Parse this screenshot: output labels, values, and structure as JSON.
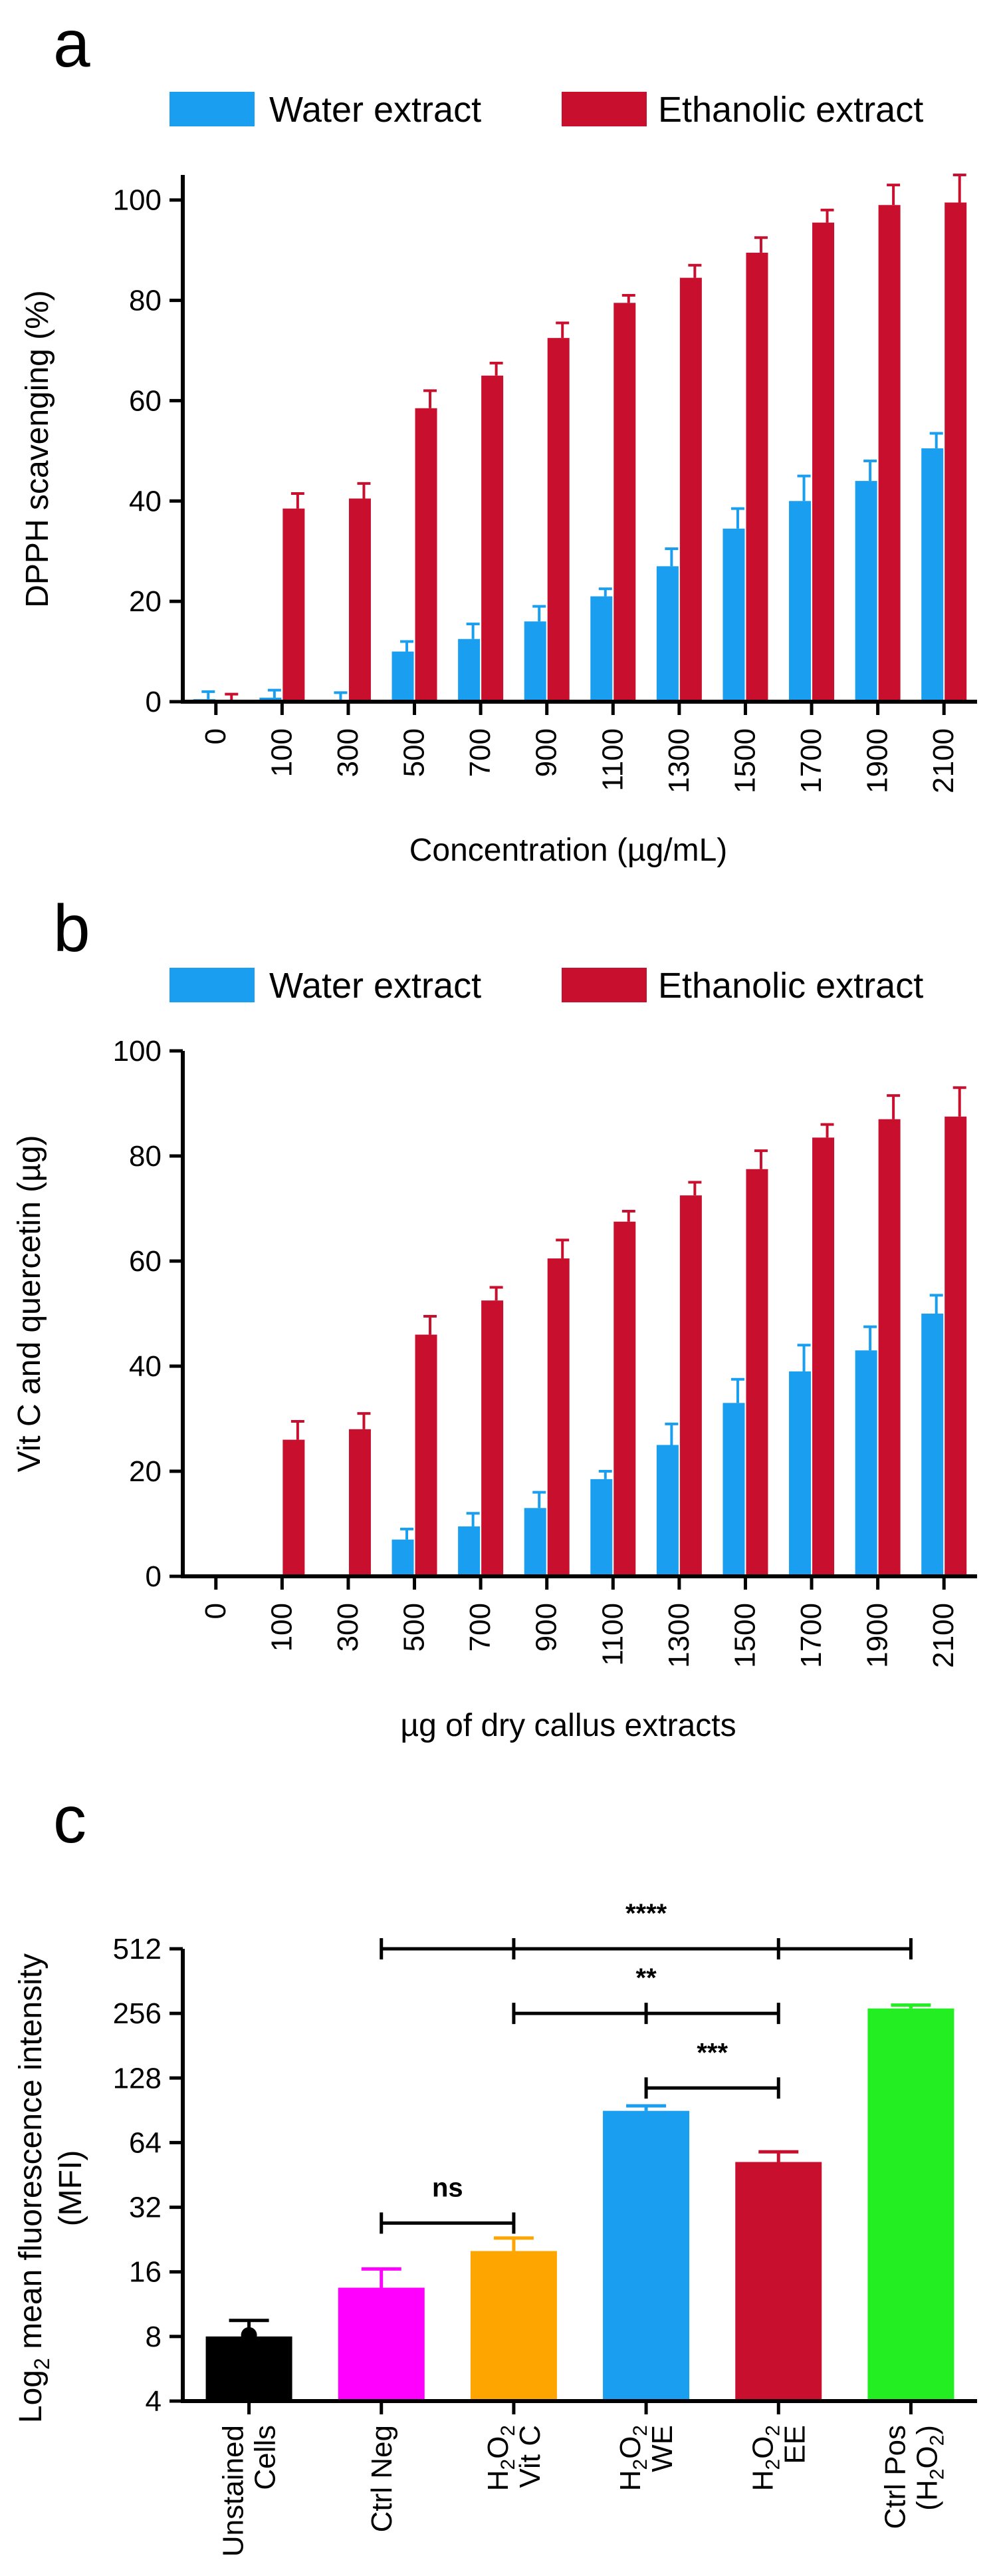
{
  "colors": {
    "water": "#1a9ff0",
    "ethanol": "#c8102e",
    "water_err": "#1a9ff0",
    "ethanol_err": "#c8102e"
  },
  "chart_data": [
    {
      "panel": "a",
      "type": "bar",
      "title": "",
      "xlabel": "Concentration (µg/mL)",
      "ylabel": "DPPH scavenging (%)",
      "ylim": [
        0,
        105
      ],
      "yticks": [
        "0",
        "20",
        "40",
        "60",
        "80",
        "100"
      ],
      "ytick_values": [
        0,
        20,
        40,
        60,
        80,
        100
      ],
      "legend": [
        "Water extract",
        "Ethanolic extract"
      ],
      "categories": [
        "0",
        "100",
        "300",
        "500",
        "700",
        "900",
        "1100",
        "1300",
        "1500",
        "1700",
        "1900",
        "2100"
      ],
      "series": [
        {
          "name": "Water extract",
          "values": [
            0.5,
            0.8,
            0.3,
            10,
            12.5,
            16,
            21,
            27,
            34.5,
            40,
            44,
            50.5
          ],
          "errors": [
            1.5,
            1.5,
            1.5,
            2,
            3,
            3,
            1.5,
            3.5,
            4,
            5,
            4,
            3
          ]
        },
        {
          "name": "Ethanolic extract",
          "values": [
            0,
            38.5,
            40.5,
            58.5,
            65,
            72.5,
            79.5,
            84.5,
            89.5,
            95.5,
            99,
            99.5
          ],
          "errors": [
            1.5,
            3,
            3,
            3.5,
            2.5,
            3,
            1.5,
            2.5,
            3,
            2.5,
            4,
            5.5
          ]
        }
      ]
    },
    {
      "panel": "b",
      "type": "bar",
      "title": "",
      "xlabel": "µg of dry callus extracts",
      "ylabel": "Vit C and quercetin (µg)",
      "ylim": [
        0,
        100
      ],
      "yticks": [
        "0",
        "20",
        "40",
        "60",
        "80",
        "100"
      ],
      "ytick_values": [
        0,
        20,
        40,
        60,
        80,
        100
      ],
      "legend": [
        "Water extract",
        "Ethanolic extract"
      ],
      "categories": [
        "0",
        "100",
        "300",
        "500",
        "700",
        "900",
        "1100",
        "1300",
        "1500",
        "1700",
        "1900",
        "2100"
      ],
      "series": [
        {
          "name": "Water extract",
          "values": [
            0,
            0,
            0,
            7,
            9.5,
            13,
            18.5,
            25,
            33,
            39,
            43,
            50
          ],
          "errors": [
            0,
            0,
            0,
            2,
            2.5,
            3,
            1.5,
            4,
            4.5,
            5,
            4.5,
            3.5
          ]
        },
        {
          "name": "Ethanolic extract",
          "values": [
            0,
            26,
            28,
            46,
            52.5,
            60.5,
            67.5,
            72.5,
            77.5,
            83.5,
            87,
            87.5
          ],
          "errors": [
            0,
            3.5,
            3,
            3.5,
            2.5,
            3.5,
            2,
            2.5,
            3.5,
            2.5,
            4.5,
            5.5
          ]
        }
      ]
    },
    {
      "panel": "c",
      "type": "bar",
      "title": "",
      "xlabel": "",
      "ylabel": "Log2 mean fluorescence intensity (MFI)",
      "ylabel_line1_main": "Log",
      "ylabel_line1_sub": "2",
      "ylabel_line1_rest": " mean fluorescence intensity",
      "ylabel_line2": "(MFI)",
      "yscale": "log2",
      "ylim": [
        4,
        512
      ],
      "yticks": [
        "4",
        "8",
        "16",
        "32",
        "64",
        "128",
        "256",
        "512"
      ],
      "ytick_values": [
        4,
        8,
        16,
        32,
        64,
        128,
        256,
        512
      ],
      "categories": [
        {
          "lines": [
            {
              "main": "Unstained"
            },
            {
              "main": "Cells"
            }
          ]
        },
        {
          "lines": [
            {
              "main": "Ctrl Neg"
            }
          ]
        },
        {
          "lines": [
            {
              "main": "H",
              "sub": "2",
              "rest": "O",
              "sub2": "2"
            },
            {
              "main": "Vit C"
            }
          ]
        },
        {
          "lines": [
            {
              "main": "H",
              "sub": "2",
              "rest": "O",
              "sub2": "2"
            },
            {
              "main": "WE"
            }
          ]
        },
        {
          "lines": [
            {
              "main": "H",
              "sub": "2",
              "rest": "O",
              "sub2": "2"
            },
            {
              "main": "EE"
            }
          ]
        },
        {
          "lines": [
            {
              "main": "Ctrl Pos"
            },
            {
              "main": "(H",
              "sub": "2",
              "rest": "O",
              "sub2": "2",
              "tail": ")"
            }
          ]
        }
      ],
      "values": [
        8,
        13.5,
        20,
        90,
        52,
        270
      ],
      "errors": [
        1.5,
        3,
        3,
        5,
        6,
        10
      ],
      "bar_colors": [
        "#000000",
        "#ff00ff",
        "#ffa500",
        "#1a9ff0",
        "#c8102e",
        "#22ee22"
      ],
      "significance": [
        {
          "label": "****",
          "from": 1,
          "to": 5,
          "level": 512,
          "ticks": [
            1,
            2,
            4,
            5
          ]
        },
        {
          "label": "**",
          "from": 2,
          "to": 4,
          "level": 256,
          "ticks": [
            2,
            3,
            4
          ]
        },
        {
          "label": "***",
          "from": 3,
          "to": 4,
          "level": 115,
          "ticks": [
            3,
            4
          ]
        },
        {
          "label": "ns",
          "from": 1,
          "to": 2,
          "level": 27,
          "ticks": [
            1,
            2
          ]
        }
      ]
    }
  ]
}
